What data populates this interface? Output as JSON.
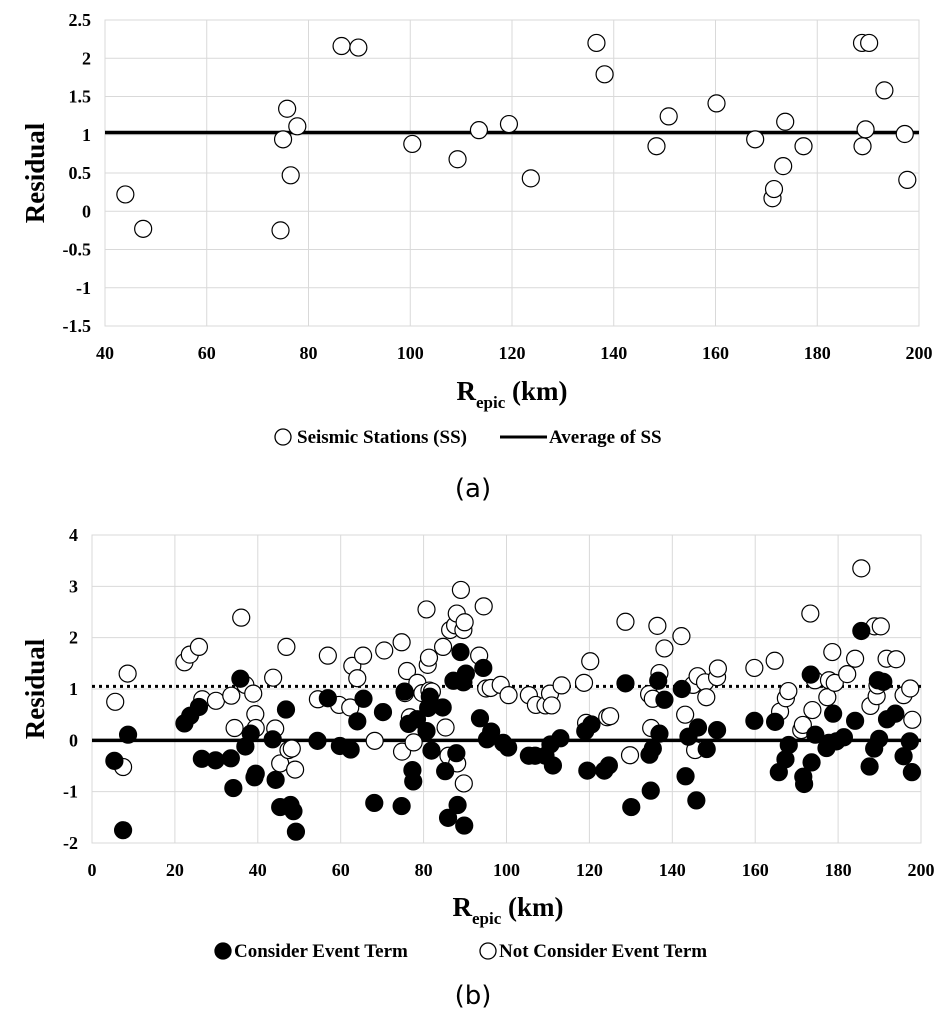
{
  "chart_data": [
    {
      "type": "scatter",
      "panel_label": "(a)",
      "xlabel_main": "R",
      "xlabel_sub": "epic",
      "xlabel_unit": " (km)",
      "ylabel": "Residual",
      "xlim": [
        40,
        200
      ],
      "ylim": [
        -1.5,
        2.5
      ],
      "xticks": [
        40,
        60,
        80,
        100,
        120,
        140,
        160,
        180,
        200
      ],
      "yticks": [
        -1.5,
        -1,
        -0.5,
        0,
        0.5,
        1,
        1.5,
        2,
        2.5
      ],
      "grid": true,
      "legend": "bottom",
      "series": [
        {
          "name": "Seismic Stations (SS)",
          "style": "open-circle",
          "points": [
            [
              44,
              0.22
            ],
            [
              47.5,
              -0.23
            ],
            [
              74.5,
              -0.25
            ],
            [
              75,
              0.94
            ],
            [
              75.8,
              1.34
            ],
            [
              76.5,
              0.47
            ],
            [
              77.8,
              1.11
            ],
            [
              86.5,
              2.16
            ],
            [
              89.8,
              2.14
            ],
            [
              100.4,
              0.88
            ],
            [
              109.3,
              0.68
            ],
            [
              113.5,
              1.06
            ],
            [
              119.4,
              1.14
            ],
            [
              123.7,
              0.43
            ],
            [
              136.6,
              2.2
            ],
            [
              138.2,
              1.79
            ],
            [
              148.4,
              0.85
            ],
            [
              150.8,
              1.24
            ],
            [
              160.2,
              1.41
            ],
            [
              167.8,
              0.94
            ],
            [
              171.2,
              0.17
            ],
            [
              171.5,
              0.29
            ],
            [
              173.3,
              0.59
            ],
            [
              173.7,
              1.17
            ],
            [
              177.3,
              0.85
            ],
            [
              188.8,
              2.2
            ],
            [
              188.9,
              0.85
            ],
            [
              189.5,
              1.07
            ],
            [
              190.2,
              2.2
            ],
            [
              193.2,
              1.58
            ],
            [
              197.2,
              1.01
            ],
            [
              197.7,
              0.41
            ]
          ]
        },
        {
          "name": "Average of SS",
          "style": "solid-line",
          "y": 1.03
        }
      ]
    },
    {
      "type": "scatter",
      "panel_label": "(b)",
      "xlabel_main": "R",
      "xlabel_sub": "epic",
      "xlabel_unit": " (km)",
      "ylabel": "Residual",
      "xlim": [
        0,
        200
      ],
      "ylim": [
        -2,
        4
      ],
      "xticks": [
        0,
        20,
        40,
        60,
        80,
        100,
        120,
        140,
        160,
        180,
        200
      ],
      "yticks": [
        -2,
        -1,
        0,
        1,
        2,
        3,
        4
      ],
      "grid": true,
      "legend": "bottom",
      "reference_lines": [
        {
          "y": 0,
          "style": "solid"
        },
        {
          "y": 1.05,
          "style": "dotted"
        }
      ],
      "series": [
        {
          "name": "Not Consider Event Term",
          "style": "open-circle",
          "points": [
            [
              5.6,
              0.75
            ],
            [
              7.5,
              -0.52
            ],
            [
              8.6,
              1.3
            ],
            [
              22.3,
              1.52
            ],
            [
              23.6,
              1.67
            ],
            [
              25.8,
              1.82
            ],
            [
              26.6,
              0.8
            ],
            [
              29.9,
              0.77
            ],
            [
              33.6,
              0.87
            ],
            [
              34.4,
              0.24
            ],
            [
              36,
              2.39
            ],
            [
              37,
              1.08
            ],
            [
              38.9,
              0.91
            ],
            [
              39.4,
              0.51
            ],
            [
              39.5,
              0.24
            ],
            [
              43.7,
              1.22
            ],
            [
              44.2,
              0.23
            ],
            [
              45.4,
              -0.45
            ],
            [
              46.9,
              1.82
            ],
            [
              47.4,
              -0.19
            ],
            [
              48.2,
              -0.16
            ],
            [
              49,
              -0.57
            ],
            [
              54.5,
              0.8
            ],
            [
              56.9,
              1.65
            ],
            [
              59.6,
              0.69
            ],
            [
              62.3,
              0.64
            ],
            [
              62.8,
              1.45
            ],
            [
              64,
              1.21
            ],
            [
              65.4,
              1.65
            ],
            [
              68.2,
              -0.01
            ],
            [
              70.5,
              1.75
            ],
            [
              74.7,
              1.91
            ],
            [
              74.8,
              -0.22
            ],
            [
              75.5,
              0.92
            ],
            [
              76,
              1.35
            ],
            [
              76.7,
              0.45
            ],
            [
              77.6,
              -0.04
            ],
            [
              78.5,
              1.12
            ],
            [
              79.7,
              0.92
            ],
            [
              80.7,
              2.55
            ],
            [
              81,
              1.47
            ],
            [
              81.3,
              1.61
            ],
            [
              81.4,
              0.97
            ],
            [
              82,
              0.95
            ],
            [
              84.7,
              1.82
            ],
            [
              85.3,
              0.25
            ],
            [
              86,
              -0.3
            ],
            [
              86.4,
              2.15
            ],
            [
              87.6,
              2.24
            ],
            [
              88,
              2.47
            ],
            [
              88.1,
              -0.45
            ],
            [
              89,
              2.93
            ],
            [
              89.6,
              2.15
            ],
            [
              89.7,
              -0.84
            ],
            [
              89.9,
              2.3
            ],
            [
              93.4,
              1.65
            ],
            [
              94.5,
              2.61
            ],
            [
              95.1,
              1.01
            ],
            [
              96.2,
              1.02
            ],
            [
              98.6,
              1.08
            ],
            [
              100.5,
              0.88
            ],
            [
              105.4,
              0.88
            ],
            [
              107.1,
              0.69
            ],
            [
              109.4,
              0.68
            ],
            [
              110.5,
              0.91
            ],
            [
              110.9,
              0.68
            ],
            [
              113.3,
              1.07
            ],
            [
              118.7,
              1.12
            ],
            [
              119.2,
              0.34
            ],
            [
              120.2,
              1.54
            ],
            [
              124.3,
              0.45
            ],
            [
              125,
              0.47
            ],
            [
              128.7,
              2.31
            ],
            [
              129.8,
              -0.29
            ],
            [
              134.4,
              0.9
            ],
            [
              134.9,
              0.24
            ],
            [
              135.3,
              0.81
            ],
            [
              136.4,
              2.23
            ],
            [
              136.9,
              1.31
            ],
            [
              138.1,
              1.79
            ],
            [
              142.2,
              2.03
            ],
            [
              143.1,
              0.5
            ],
            [
              145,
              1.08
            ],
            [
              145.5,
              -0.19
            ],
            [
              146.1,
              1.25
            ],
            [
              147.9,
              1.13
            ],
            [
              148.2,
              0.84
            ],
            [
              150.8,
              1.23
            ],
            [
              151,
              1.4
            ],
            [
              159.8,
              1.41
            ],
            [
              164.7,
              1.55
            ],
            [
              166,
              0.56
            ],
            [
              167.4,
              0.82
            ],
            [
              168,
              0.96
            ],
            [
              171.1,
              0.2
            ],
            [
              171.5,
              0.3
            ],
            [
              173.3,
              2.47
            ],
            [
              173.8,
              0.59
            ],
            [
              174.4,
              1.17
            ],
            [
              177.4,
              0.84
            ],
            [
              177.8,
              1.17
            ],
            [
              178.6,
              1.72
            ],
            [
              179.2,
              1.12
            ],
            [
              182.2,
              1.29
            ],
            [
              184.1,
              1.59
            ],
            [
              185.6,
              3.35
            ],
            [
              187.8,
              0.67
            ],
            [
              188.8,
              2.22
            ],
            [
              189.3,
              0.86
            ],
            [
              189.5,
              1.07
            ],
            [
              190.3,
              2.22
            ],
            [
              191.7,
              1.59
            ],
            [
              194,
              1.58
            ],
            [
              195.8,
              0.88
            ],
            [
              197.4,
              1.01
            ],
            [
              197.9,
              0.4
            ]
          ]
        },
        {
          "name": "Consider Event Term",
          "style": "filled-circle",
          "points": [
            [
              5.4,
              -0.4
            ],
            [
              7.5,
              -1.75
            ],
            [
              8.7,
              0.11
            ],
            [
              22.3,
              0.33
            ],
            [
              23.7,
              0.48
            ],
            [
              25.8,
              0.65
            ],
            [
              26.5,
              -0.36
            ],
            [
              29.8,
              -0.39
            ],
            [
              33.5,
              -0.35
            ],
            [
              34.1,
              -0.93
            ],
            [
              35.8,
              1.2
            ],
            [
              37,
              -0.12
            ],
            [
              38.3,
              0.13
            ],
            [
              39.2,
              -0.72
            ],
            [
              39.5,
              -0.65
            ],
            [
              43.6,
              0.02
            ],
            [
              44.3,
              -0.77
            ],
            [
              45.4,
              -1.3
            ],
            [
              46.8,
              0.6
            ],
            [
              47.9,
              -1.26
            ],
            [
              48.6,
              -1.38
            ],
            [
              49.2,
              -1.78
            ],
            [
              54.4,
              -0.01
            ],
            [
              56.9,
              0.82
            ],
            [
              59.8,
              -0.11
            ],
            [
              62.4,
              -0.18
            ],
            [
              64,
              0.37
            ],
            [
              65.5,
              0.81
            ],
            [
              68.1,
              -1.22
            ],
            [
              70.2,
              0.55
            ],
            [
              74.7,
              -1.28
            ],
            [
              75.4,
              0.95
            ],
            [
              76.4,
              0.32
            ],
            [
              77.3,
              -0.58
            ],
            [
              77.5,
              -0.8
            ],
            [
              78.4,
              0.41
            ],
            [
              80.7,
              0.18
            ],
            [
              81.1,
              0.63
            ],
            [
              81.5,
              0.85
            ],
            [
              81.9,
              -0.2
            ],
            [
              84.6,
              0.64
            ],
            [
              85.2,
              -0.6
            ],
            [
              85.9,
              -1.51
            ],
            [
              87.2,
              1.16
            ],
            [
              87.9,
              -0.25
            ],
            [
              88.2,
              -1.26
            ],
            [
              88.9,
              1.72
            ],
            [
              89.6,
              1.13
            ],
            [
              89.8,
              -1.66
            ],
            [
              90.2,
              1.3
            ],
            [
              93.6,
              0.43
            ],
            [
              94.4,
              1.41
            ],
            [
              95.3,
              0.02
            ],
            [
              96.3,
              0.17
            ],
            [
              99.2,
              -0.05
            ],
            [
              100.4,
              -0.14
            ],
            [
              105.4,
              -0.3
            ],
            [
              106.9,
              -0.3
            ],
            [
              109.4,
              -0.3
            ],
            [
              110.6,
              -0.08
            ],
            [
              111.2,
              -0.49
            ],
            [
              113,
              0.04
            ],
            [
              119,
              0.18
            ],
            [
              119.5,
              -0.59
            ],
            [
              120.5,
              0.31
            ],
            [
              123.6,
              -0.59
            ],
            [
              124.7,
              -0.49
            ],
            [
              128.7,
              1.11
            ],
            [
              130.1,
              -1.3
            ],
            [
              134.5,
              -0.28
            ],
            [
              134.8,
              -0.98
            ],
            [
              135.3,
              -0.16
            ],
            [
              136.6,
              1.16
            ],
            [
              136.9,
              0.13
            ],
            [
              138.1,
              0.79
            ],
            [
              142.3,
              1.0
            ],
            [
              143.2,
              -0.7
            ],
            [
              143.9,
              0.07
            ],
            [
              145.8,
              -1.17
            ],
            [
              146.2,
              0.25
            ],
            [
              148.3,
              -0.17
            ],
            [
              150.8,
              0.2
            ],
            [
              159.8,
              0.38
            ],
            [
              164.8,
              0.36
            ],
            [
              165.7,
              -0.62
            ],
            [
              167.3,
              -0.37
            ],
            [
              168.1,
              -0.09
            ],
            [
              171.6,
              -0.71
            ],
            [
              171.8,
              -0.85
            ],
            [
              173.4,
              1.28
            ],
            [
              173.6,
              -0.43
            ],
            [
              174.5,
              0.11
            ],
            [
              177.2,
              -0.15
            ],
            [
              177.8,
              -0.05
            ],
            [
              178.8,
              0.52
            ],
            [
              179.6,
              -0.02
            ],
            [
              181.4,
              0.06
            ],
            [
              184.1,
              0.38
            ],
            [
              185.6,
              2.13
            ],
            [
              187.6,
              -0.51
            ],
            [
              188.7,
              -0.16
            ],
            [
              189.6,
              1.17
            ],
            [
              189.9,
              0.03
            ],
            [
              190.9,
              1.14
            ],
            [
              191.8,
              0.41
            ],
            [
              193.8,
              0.52
            ],
            [
              195.8,
              -0.31
            ],
            [
              197.3,
              -0.02
            ],
            [
              197.8,
              -0.62
            ]
          ]
        }
      ]
    }
  ]
}
